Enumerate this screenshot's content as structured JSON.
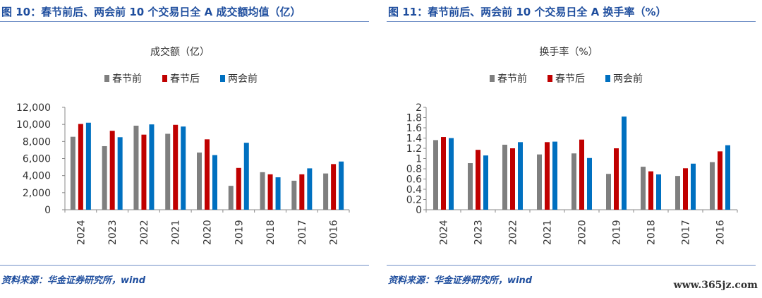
{
  "figures": [
    {
      "title": "图 10：春节前后、两会前 10 个交易日全 A 成交额均值（亿）",
      "source": "资料来源：华金证券研究所，wind"
    },
    {
      "title": "图 11：春节前后、两会前 10 个交易日全 A 换手率（%）",
      "source": "资料来源：华金证券研究所，wind"
    }
  ],
  "watermark": "www.365jz.com",
  "colors": {
    "series": [
      "#7f7f7f",
      "#c00000",
      "#0070c0"
    ],
    "title": "#1f4e9e"
  },
  "chart_data": [
    {
      "type": "bar",
      "title": "成交额（亿）",
      "categories": [
        "2024",
        "2023",
        "2022",
        "2021",
        "2020",
        "2019",
        "2018",
        "2017",
        "2016"
      ],
      "series": [
        {
          "name": "春节前",
          "values": [
            8550,
            7450,
            9850,
            8900,
            6700,
            2800,
            4400,
            3400,
            4250
          ]
        },
        {
          "name": "春节后",
          "values": [
            10050,
            9250,
            8800,
            9950,
            8250,
            4900,
            4150,
            4150,
            5350
          ]
        },
        {
          "name": "两会前",
          "values": [
            10200,
            8500,
            10000,
            9750,
            6400,
            7850,
            3800,
            4850,
            5650
          ]
        }
      ],
      "ylim": [
        0,
        12000
      ],
      "yticks": [
        "0",
        "2,000",
        "4,000",
        "6,000",
        "8,000",
        "10,000",
        "12,000"
      ],
      "legend_position": "top",
      "grid": false
    },
    {
      "type": "bar",
      "title": "换手率（%）",
      "categories": [
        "2024",
        "2023",
        "2022",
        "2021",
        "2020",
        "2019",
        "2018",
        "2017",
        "2016"
      ],
      "series": [
        {
          "name": "春节前",
          "values": [
            1.36,
            0.91,
            1.27,
            1.08,
            1.1,
            0.7,
            0.84,
            0.66,
            0.93
          ]
        },
        {
          "name": "春节后",
          "values": [
            1.42,
            1.17,
            1.2,
            1.32,
            1.37,
            1.2,
            0.75,
            0.81,
            1.14
          ]
        },
        {
          "name": "两会前",
          "values": [
            1.4,
            1.06,
            1.32,
            1.33,
            1.01,
            1.82,
            0.69,
            0.9,
            1.26
          ]
        }
      ],
      "ylim": [
        0,
        2
      ],
      "yticks": [
        "0",
        "0.2",
        "0.4",
        "0.6",
        "0.8",
        "1",
        "1.2",
        "1.4",
        "1.6",
        "1.8",
        "2"
      ],
      "legend_position": "top",
      "grid": false
    }
  ]
}
